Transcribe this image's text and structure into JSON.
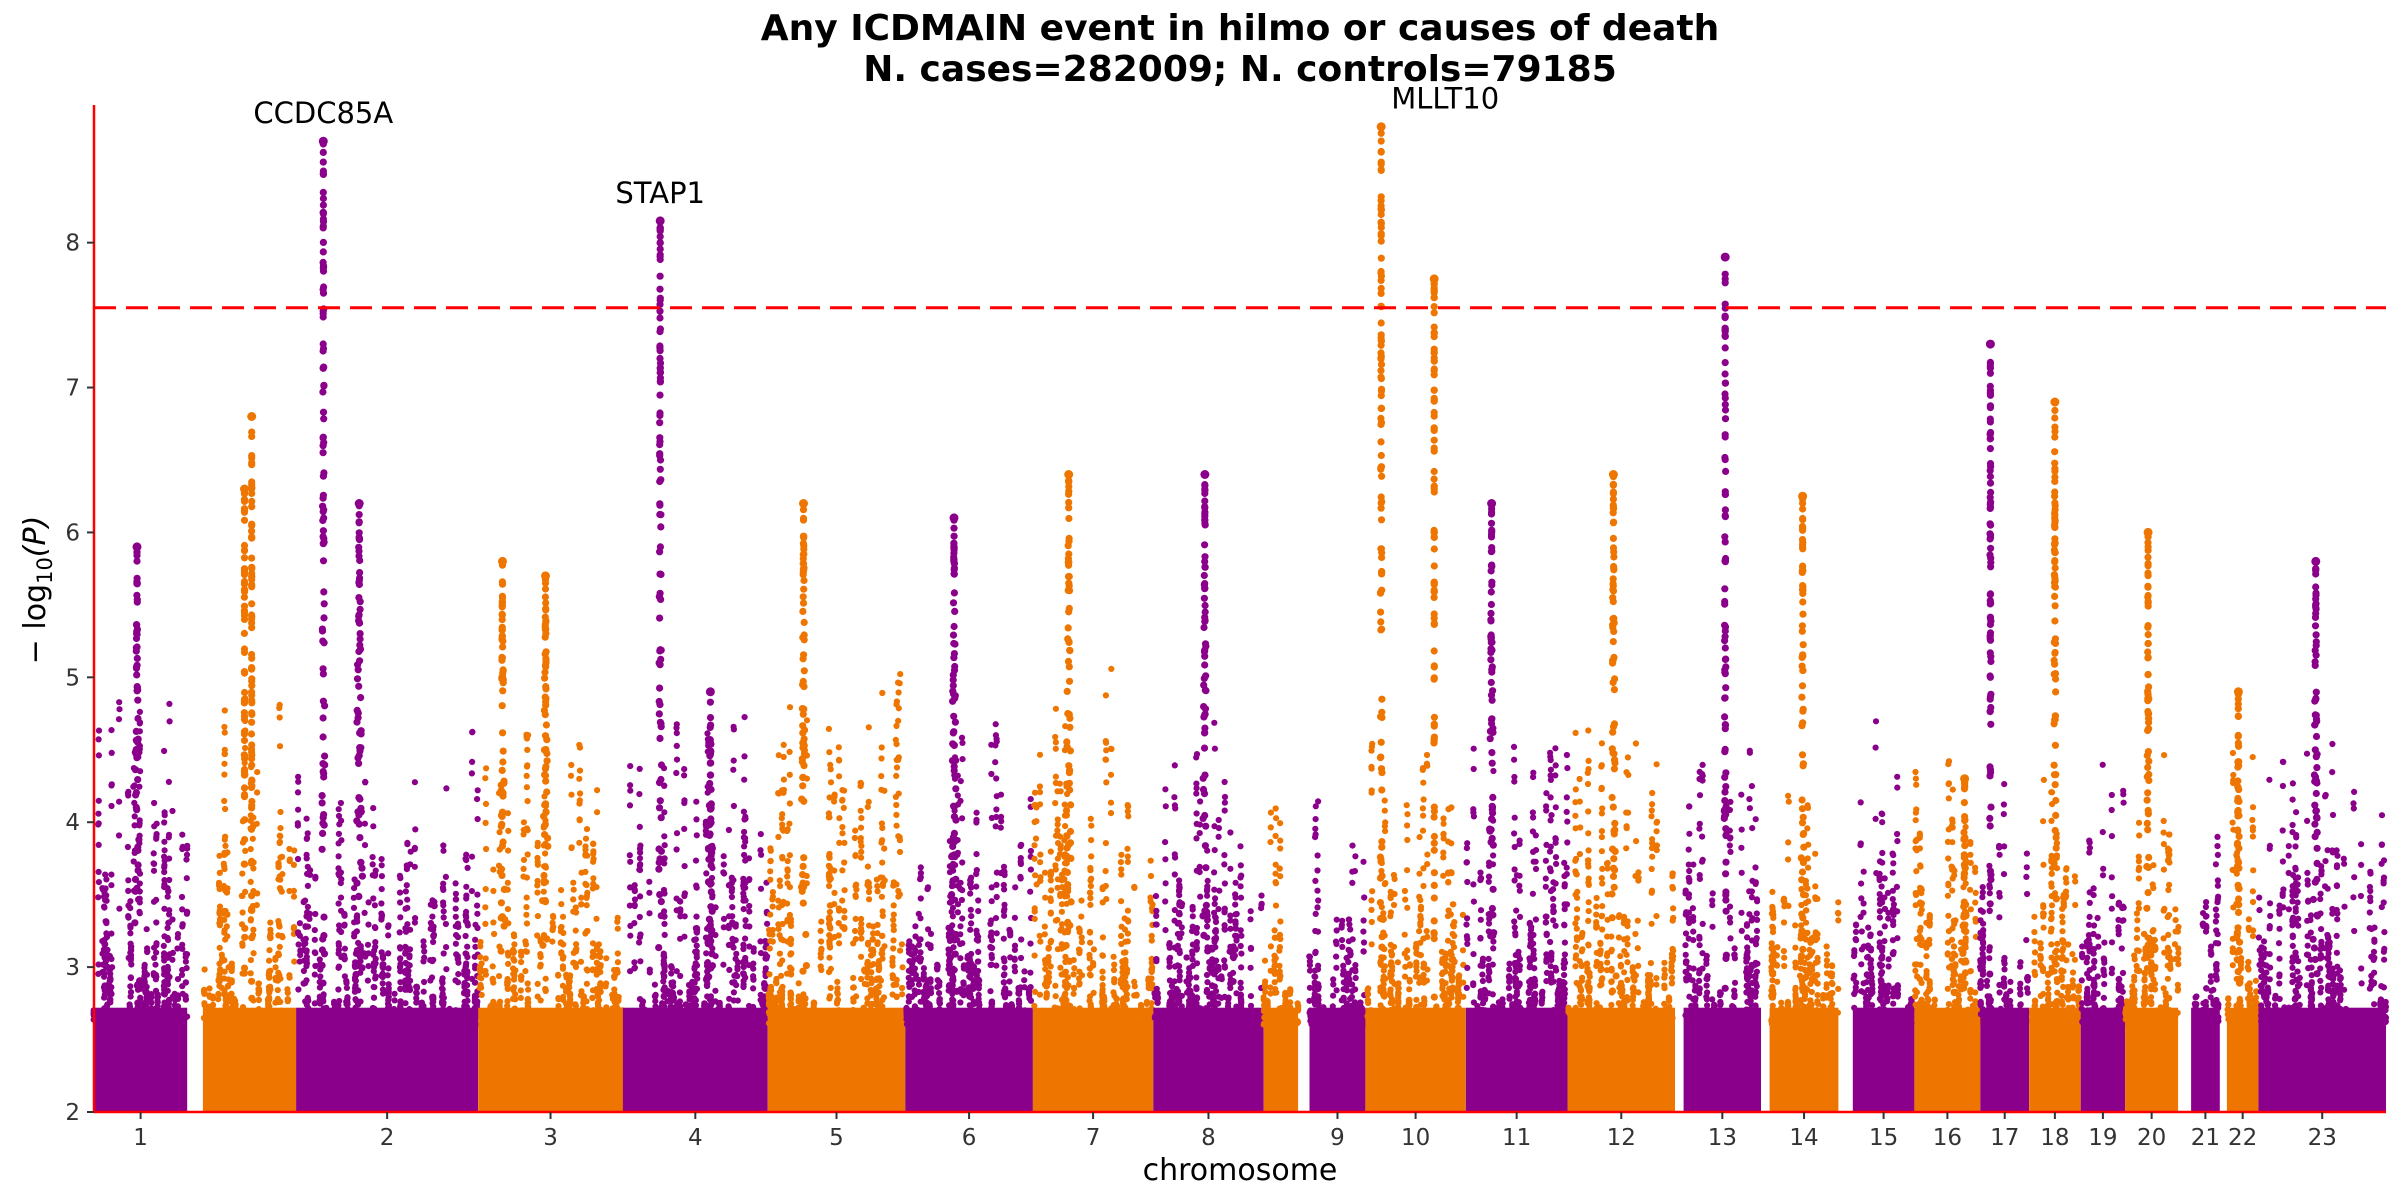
{
  "chart_data": {
    "type": "scatter",
    "title": "Any ICDMAIN event in hilmo or causes of death",
    "subtitle": "N. cases=282009; N. controls=79185",
    "xlabel": "chromosome",
    "ylabel_prefix": "− log",
    "ylabel_sub": "10",
    "ylabel_suffix": "(P)",
    "ylim": [
      2,
      8.95
    ],
    "yticks": [
      "2",
      "3",
      "4",
      "5",
      "6",
      "7",
      "8"
    ],
    "significance_threshold": 7.55,
    "colors": {
      "odd_chromosome": "#8B008B",
      "even_chromosome": "#EE7600",
      "threshold_line": "#FF0000",
      "axis_line": "#FF0000"
    },
    "grid": false,
    "chromosomes": [
      {
        "label": "1",
        "start": 0.0,
        "end": 6.5,
        "floor": 4.6,
        "peaks": [
          [
            3.0,
            5.9,
            0.5
          ]
        ]
      },
      {
        "label": "",
        "start": 7.6,
        "end": 14.1,
        "floor": 4.5,
        "peaks": [
          [
            11.0,
            6.8,
            0.05
          ],
          [
            10.5,
            6.3,
            0.05
          ]
        ]
      },
      {
        "label": "2",
        "start": 14.1,
        "end": 26.8,
        "floor": 4.1,
        "peaks": [
          [
            16.0,
            8.7,
            0.3
          ],
          [
            18.5,
            6.2,
            0.8
          ]
        ]
      },
      {
        "label": "3",
        "start": 26.8,
        "end": 36.9,
        "floor": 4.3,
        "peaks": [
          [
            28.5,
            5.8,
            0.5
          ],
          [
            31.5,
            5.7,
            0.6
          ]
        ]
      },
      {
        "label": "4",
        "start": 36.9,
        "end": 47.0,
        "floor": 4.4,
        "peaks": [
          [
            39.5,
            8.15,
            0.3
          ],
          [
            43.0,
            4.9,
            0.5
          ]
        ]
      },
      {
        "label": "5",
        "start": 47.0,
        "end": 56.6,
        "floor": 4.6,
        "peaks": [
          [
            49.5,
            6.2,
            0.5
          ]
        ]
      },
      {
        "label": "6",
        "start": 56.6,
        "end": 65.5,
        "floor": 4.5,
        "peaks": [
          [
            60.0,
            6.1,
            0.6
          ]
        ]
      },
      {
        "label": "7",
        "start": 65.5,
        "end": 73.9,
        "floor": 4.5,
        "peaks": [
          [
            68.0,
            6.4,
            0.6
          ]
        ]
      },
      {
        "label": "8",
        "start": 73.9,
        "end": 81.6,
        "floor": 4.2,
        "peaks": [
          [
            77.5,
            6.4,
            0.5
          ]
        ]
      },
      {
        "label": "",
        "start": 81.6,
        "end": 84.0,
        "floor": 3.8,
        "peaks": []
      },
      {
        "label": "9",
        "start": 84.8,
        "end": 88.7,
        "floor": 3.9,
        "peaks": []
      },
      {
        "label": "10",
        "start": 88.7,
        "end": 95.7,
        "floor": 4.0,
        "peaks": [
          [
            89.8,
            8.8,
            0.2
          ],
          [
            93.5,
            7.75,
            0.05
          ]
        ]
      },
      {
        "label": "11",
        "start": 95.7,
        "end": 102.8,
        "floor": 4.3,
        "peaks": [
          [
            97.5,
            6.2,
            0.5
          ]
        ]
      },
      {
        "label": "12",
        "start": 102.8,
        "end": 110.3,
        "floor": 4.2,
        "peaks": [
          [
            106.0,
            6.4,
            0.5
          ]
        ]
      },
      {
        "label": "13",
        "start": 110.9,
        "end": 116.3,
        "floor": 4.2,
        "peaks": [
          [
            113.8,
            7.9,
            0.2
          ]
        ]
      },
      {
        "label": "14",
        "start": 116.9,
        "end": 121.7,
        "floor": 4.2,
        "peaks": [
          [
            119.2,
            6.25,
            0.3
          ]
        ]
      },
      {
        "label": "15",
        "start": 122.7,
        "end": 127.0,
        "floor": 4.2,
        "peaks": []
      },
      {
        "label": "16",
        "start": 127.0,
        "end": 131.6,
        "floor": 4.0,
        "peaks": [
          [
            130.5,
            4.3,
            0.4
          ]
        ]
      },
      {
        "label": "17",
        "start": 131.6,
        "end": 135.0,
        "floor": 4.3,
        "peaks": [
          [
            132.3,
            7.3,
            0.2
          ]
        ]
      },
      {
        "label": "18",
        "start": 135.0,
        "end": 138.6,
        "floor": 4.0,
        "peaks": [
          [
            136.8,
            6.9,
            0.3
          ]
        ]
      },
      {
        "label": "19",
        "start": 138.6,
        "end": 141.7,
        "floor": 4.0,
        "peaks": []
      },
      {
        "label": "20",
        "start": 141.7,
        "end": 145.4,
        "floor": 4.0,
        "peaks": [
          [
            143.3,
            6.0,
            0.3
          ]
        ]
      },
      {
        "label": "21",
        "start": 146.3,
        "end": 148.3,
        "floor": 3.8,
        "peaks": []
      },
      {
        "label": "22",
        "start": 148.8,
        "end": 151.0,
        "floor": 4.5,
        "peaks": [
          [
            149.6,
            4.9,
            0.3
          ]
        ]
      },
      {
        "label": "23",
        "start": 151.0,
        "end": 159.9,
        "floor": 4.0,
        "peaks": [
          [
            155.0,
            5.8,
            0.5
          ]
        ]
      }
    ],
    "annotations": [
      {
        "label": "CCDC85A",
        "x": 16.0,
        "y": 8.7
      },
      {
        "label": "STAP1",
        "x": 39.5,
        "y": 8.15
      },
      {
        "label": "MLLT10",
        "x": 89.8,
        "y": 8.8
      }
    ]
  }
}
